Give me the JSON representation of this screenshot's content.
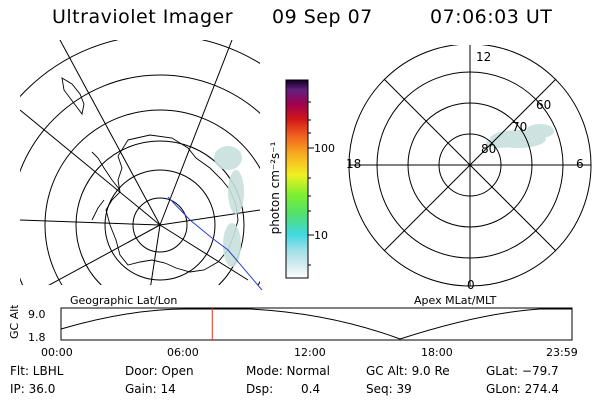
{
  "header": {
    "title": "Ultraviolet Imager",
    "date": "09 Sep 07",
    "time": "07:06:03 UT"
  },
  "geo_panel": {
    "label": "Geographic Lat/Lon"
  },
  "apex_panel": {
    "label": "Apex MLat/MLT",
    "mlt_labels": {
      "top": "12",
      "left": "18",
      "right": "6",
      "bottom": "0"
    },
    "mlat_labels": [
      "80",
      "70",
      "60"
    ]
  },
  "colorbar": {
    "unit_label": "photon cm⁻²s⁻¹",
    "ticks": [
      "100",
      "10"
    ]
  },
  "altitude_plot": {
    "y_label": "GC Alt",
    "y_ticks": [
      "9.0",
      "1.8"
    ],
    "x_ticks": [
      "00:00",
      "06:00",
      "12:00",
      "18:00",
      "23:59"
    ],
    "current_time_fraction": 0.296
  },
  "info": {
    "row1": {
      "flt": "Flt: LBHL",
      "door": "Door: Open",
      "mode": "Mode: Normal",
      "gc_alt": "GC Alt: 9.0 Re",
      "glat": "GLat: −79.7"
    },
    "row2": {
      "ip": "IP: 36.0",
      "gain": "Gain: 14",
      "dsp_label": "Dsp:",
      "dsp_value": "0.4",
      "seq": "Seq: 39",
      "glon": "GLon: 274.4"
    }
  },
  "colors": {
    "line": "#000000",
    "aurora": "#c8e0dc",
    "nadir_track": "#2a3fd0",
    "time_marker": "#e03020"
  }
}
